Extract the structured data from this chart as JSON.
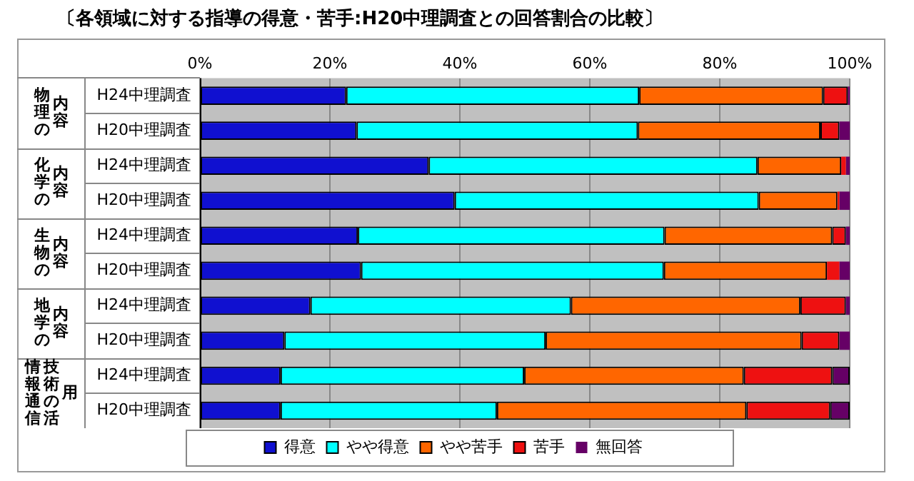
{
  "chart_data": {
    "type": "bar",
    "orientation": "horizontal",
    "stacked": true,
    "title": "〔各領域に対する指導の得意・苦手:H20中理調査との回答割合の比較〕",
    "categories": [
      "H24中理調査",
      "H20中理調査",
      "H24中理調査",
      "H20中理調査",
      "H24中理調査",
      "H20中理調査",
      "H24中理調査",
      "H20中理調査",
      "H24中理調査",
      "H20中理調査"
    ],
    "annotations": [
      "物理の内容",
      "化学の内容",
      "生物の内容",
      "地学の内容",
      "情報通信技術の活用"
    ],
    "series": [
      {
        "name": "得意",
        "color": "#1010d0",
        "values": [
          22.5,
          24.1,
          35.2,
          39.2,
          24.3,
          24.8,
          17.0,
          13.0,
          12.4,
          12.4
        ]
      },
      {
        "name": "やや得意",
        "color": "#00ffff",
        "values": [
          45.1,
          43.3,
          50.6,
          46.8,
          47.2,
          46.6,
          40.1,
          40.2,
          37.5,
          33.3
        ]
      },
      {
        "name": "やや苦手",
        "color": "#ff6600",
        "values": [
          28.3,
          28.1,
          12.9,
          12.1,
          25.8,
          25.1,
          35.3,
          39.4,
          33.8,
          38.4
        ]
      },
      {
        "name": "苦手",
        "color": "#ee1111",
        "values": [
          3.8,
          2.9,
          0.7,
          0.3,
          2.1,
          1.9,
          7.0,
          5.8,
          13.6,
          12.9
        ]
      },
      {
        "name": "無回答",
        "color": "#660066",
        "values": [
          0.3,
          1.6,
          0.6,
          1.6,
          0.6,
          1.6,
          0.6,
          1.6,
          2.7,
          3.0
        ]
      }
    ],
    "xlim": [
      0,
      100
    ],
    "xticks": [
      {
        "value": 0,
        "label": "0%"
      },
      {
        "value": 20,
        "label": "20%"
      },
      {
        "value": 40,
        "label": "40%"
      },
      {
        "value": 60,
        "label": "60%"
      },
      {
        "value": 80,
        "label": "80%"
      },
      {
        "value": 100,
        "label": "100%"
      }
    ],
    "grid": "x",
    "legend": "bottom"
  }
}
